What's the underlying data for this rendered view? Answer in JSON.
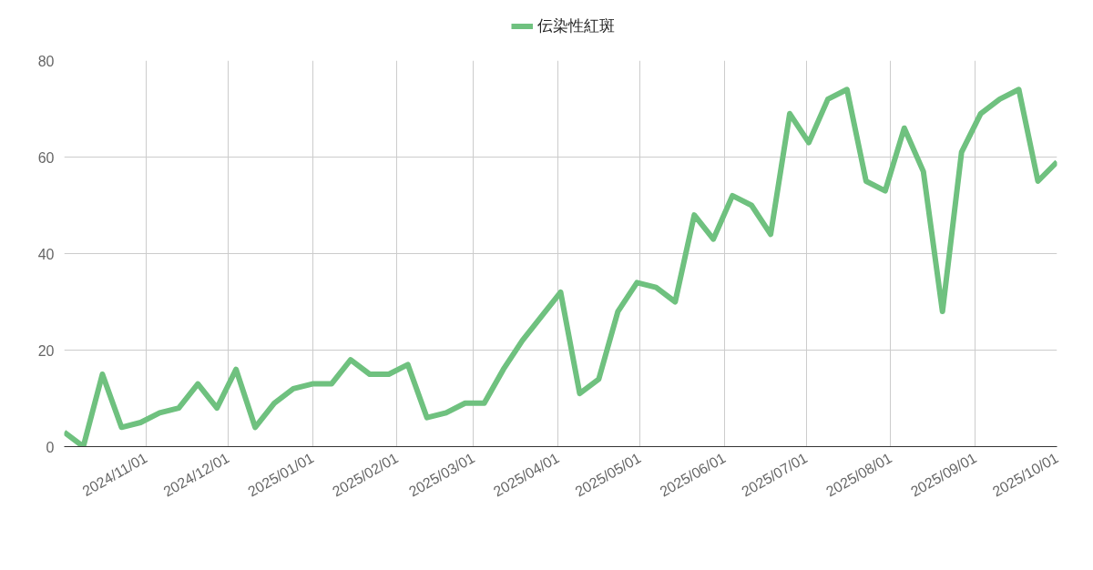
{
  "chart_data": {
    "type": "line",
    "x": [
      "2024-10-02",
      "2024-10-09",
      "2024-10-16",
      "2024-10-23",
      "2024-10-30",
      "2024-11-06",
      "2024-11-13",
      "2024-11-20",
      "2024-11-27",
      "2024-12-04",
      "2024-12-11",
      "2024-12-18",
      "2024-12-25",
      "2025-01-01",
      "2025-01-08",
      "2025-01-15",
      "2025-01-22",
      "2025-01-29",
      "2025-02-05",
      "2025-02-12",
      "2025-02-19",
      "2025-02-26",
      "2025-03-05",
      "2025-03-12",
      "2025-03-19",
      "2025-03-26",
      "2025-04-02",
      "2025-04-09",
      "2025-04-16",
      "2025-04-23",
      "2025-04-30",
      "2025-05-07",
      "2025-05-14",
      "2025-05-21",
      "2025-05-28",
      "2025-06-04",
      "2025-06-11",
      "2025-06-18",
      "2025-06-25",
      "2025-07-02",
      "2025-07-09",
      "2025-07-16",
      "2025-07-23",
      "2025-07-30",
      "2025-08-06",
      "2025-08-13",
      "2025-08-20",
      "2025-08-27",
      "2025-09-03",
      "2025-09-10",
      "2025-09-17",
      "2025-09-24",
      "2025-10-01"
    ],
    "series": [
      {
        "name": "伝染性紅斑",
        "color": "#6fc17f",
        "values": [
          3,
          0,
          15,
          4,
          5,
          7,
          8,
          13,
          8,
          16,
          4,
          9,
          12,
          13,
          13,
          18,
          15,
          15,
          17,
          6,
          7,
          9,
          9,
          16,
          22,
          27,
          32,
          11,
          14,
          28,
          34,
          33,
          30,
          48,
          43,
          52,
          50,
          44,
          69,
          63,
          72,
          74,
          55,
          53,
          66,
          57,
          28,
          61,
          69,
          72,
          74,
          55,
          59
        ]
      }
    ],
    "xlim": [
      "2024-10-02",
      "2025-10-01"
    ],
    "xticks": [
      {
        "value": "2024-11-01",
        "label": "2024/11/01"
      },
      {
        "value": "2024-12-01",
        "label": "2024/12/01"
      },
      {
        "value": "2025-01-01",
        "label": "2025/01/01"
      },
      {
        "value": "2025-02-01",
        "label": "2025/02/01"
      },
      {
        "value": "2025-03-01",
        "label": "2025/03/01"
      },
      {
        "value": "2025-04-01",
        "label": "2025/04/01"
      },
      {
        "value": "2025-05-01",
        "label": "2025/05/01"
      },
      {
        "value": "2025-06-01",
        "label": "2025/06/01"
      },
      {
        "value": "2025-07-01",
        "label": "2025/07/01"
      },
      {
        "value": "2025-08-01",
        "label": "2025/08/01"
      },
      {
        "value": "2025-09-01",
        "label": "2025/09/01"
      },
      {
        "value": "2025-10-01",
        "label": "2025/10/01"
      }
    ],
    "ylim": [
      0,
      80
    ],
    "yticks": [
      0,
      20,
      40,
      60,
      80
    ],
    "grid": true,
    "legend": "top",
    "marker": "none",
    "line_style": "solid"
  }
}
